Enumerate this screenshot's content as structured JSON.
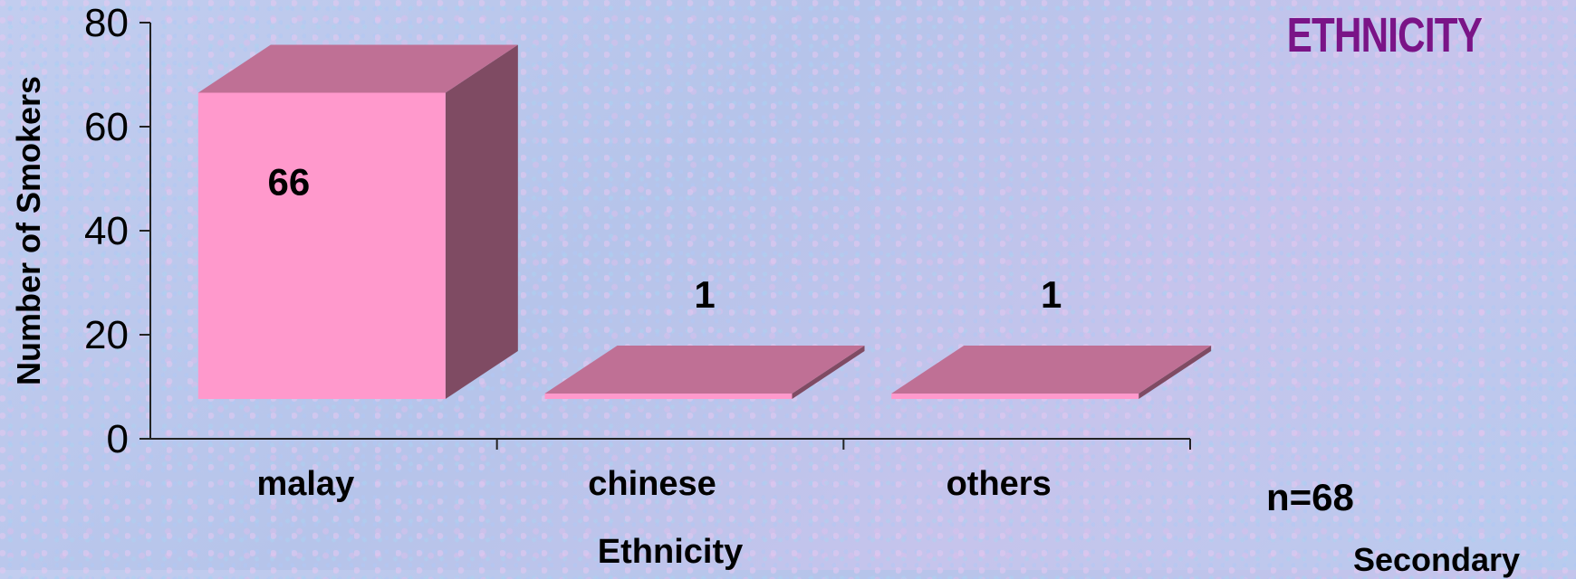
{
  "chart_data": {
    "type": "bar",
    "title": "ETHNICITY",
    "categories": [
      "malay",
      "chinese",
      "others"
    ],
    "values": [
      66,
      1,
      1
    ],
    "data_labels": [
      "66",
      "1",
      "1"
    ],
    "xlabel": "Ethnicity",
    "ylabel": "Number of Smokers",
    "ylim": [
      0,
      80
    ],
    "yticks": [
      "0",
      "20",
      "40",
      "60",
      "80"
    ],
    "grid": false,
    "style": "3d-column",
    "colors": {
      "front": "#ff99cc",
      "top": "#bf7095",
      "side": "#7f4b63",
      "title": "#7a1487"
    }
  },
  "annotations": {
    "n_note": "n=68",
    "secondary_note": "Secondary"
  }
}
